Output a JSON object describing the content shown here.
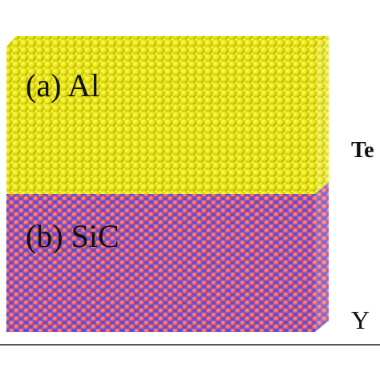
{
  "labels": {
    "al": "(a) Al",
    "sic": "(b) SiC",
    "cropped": "Te",
    "axis_y": "Y"
  }
}
